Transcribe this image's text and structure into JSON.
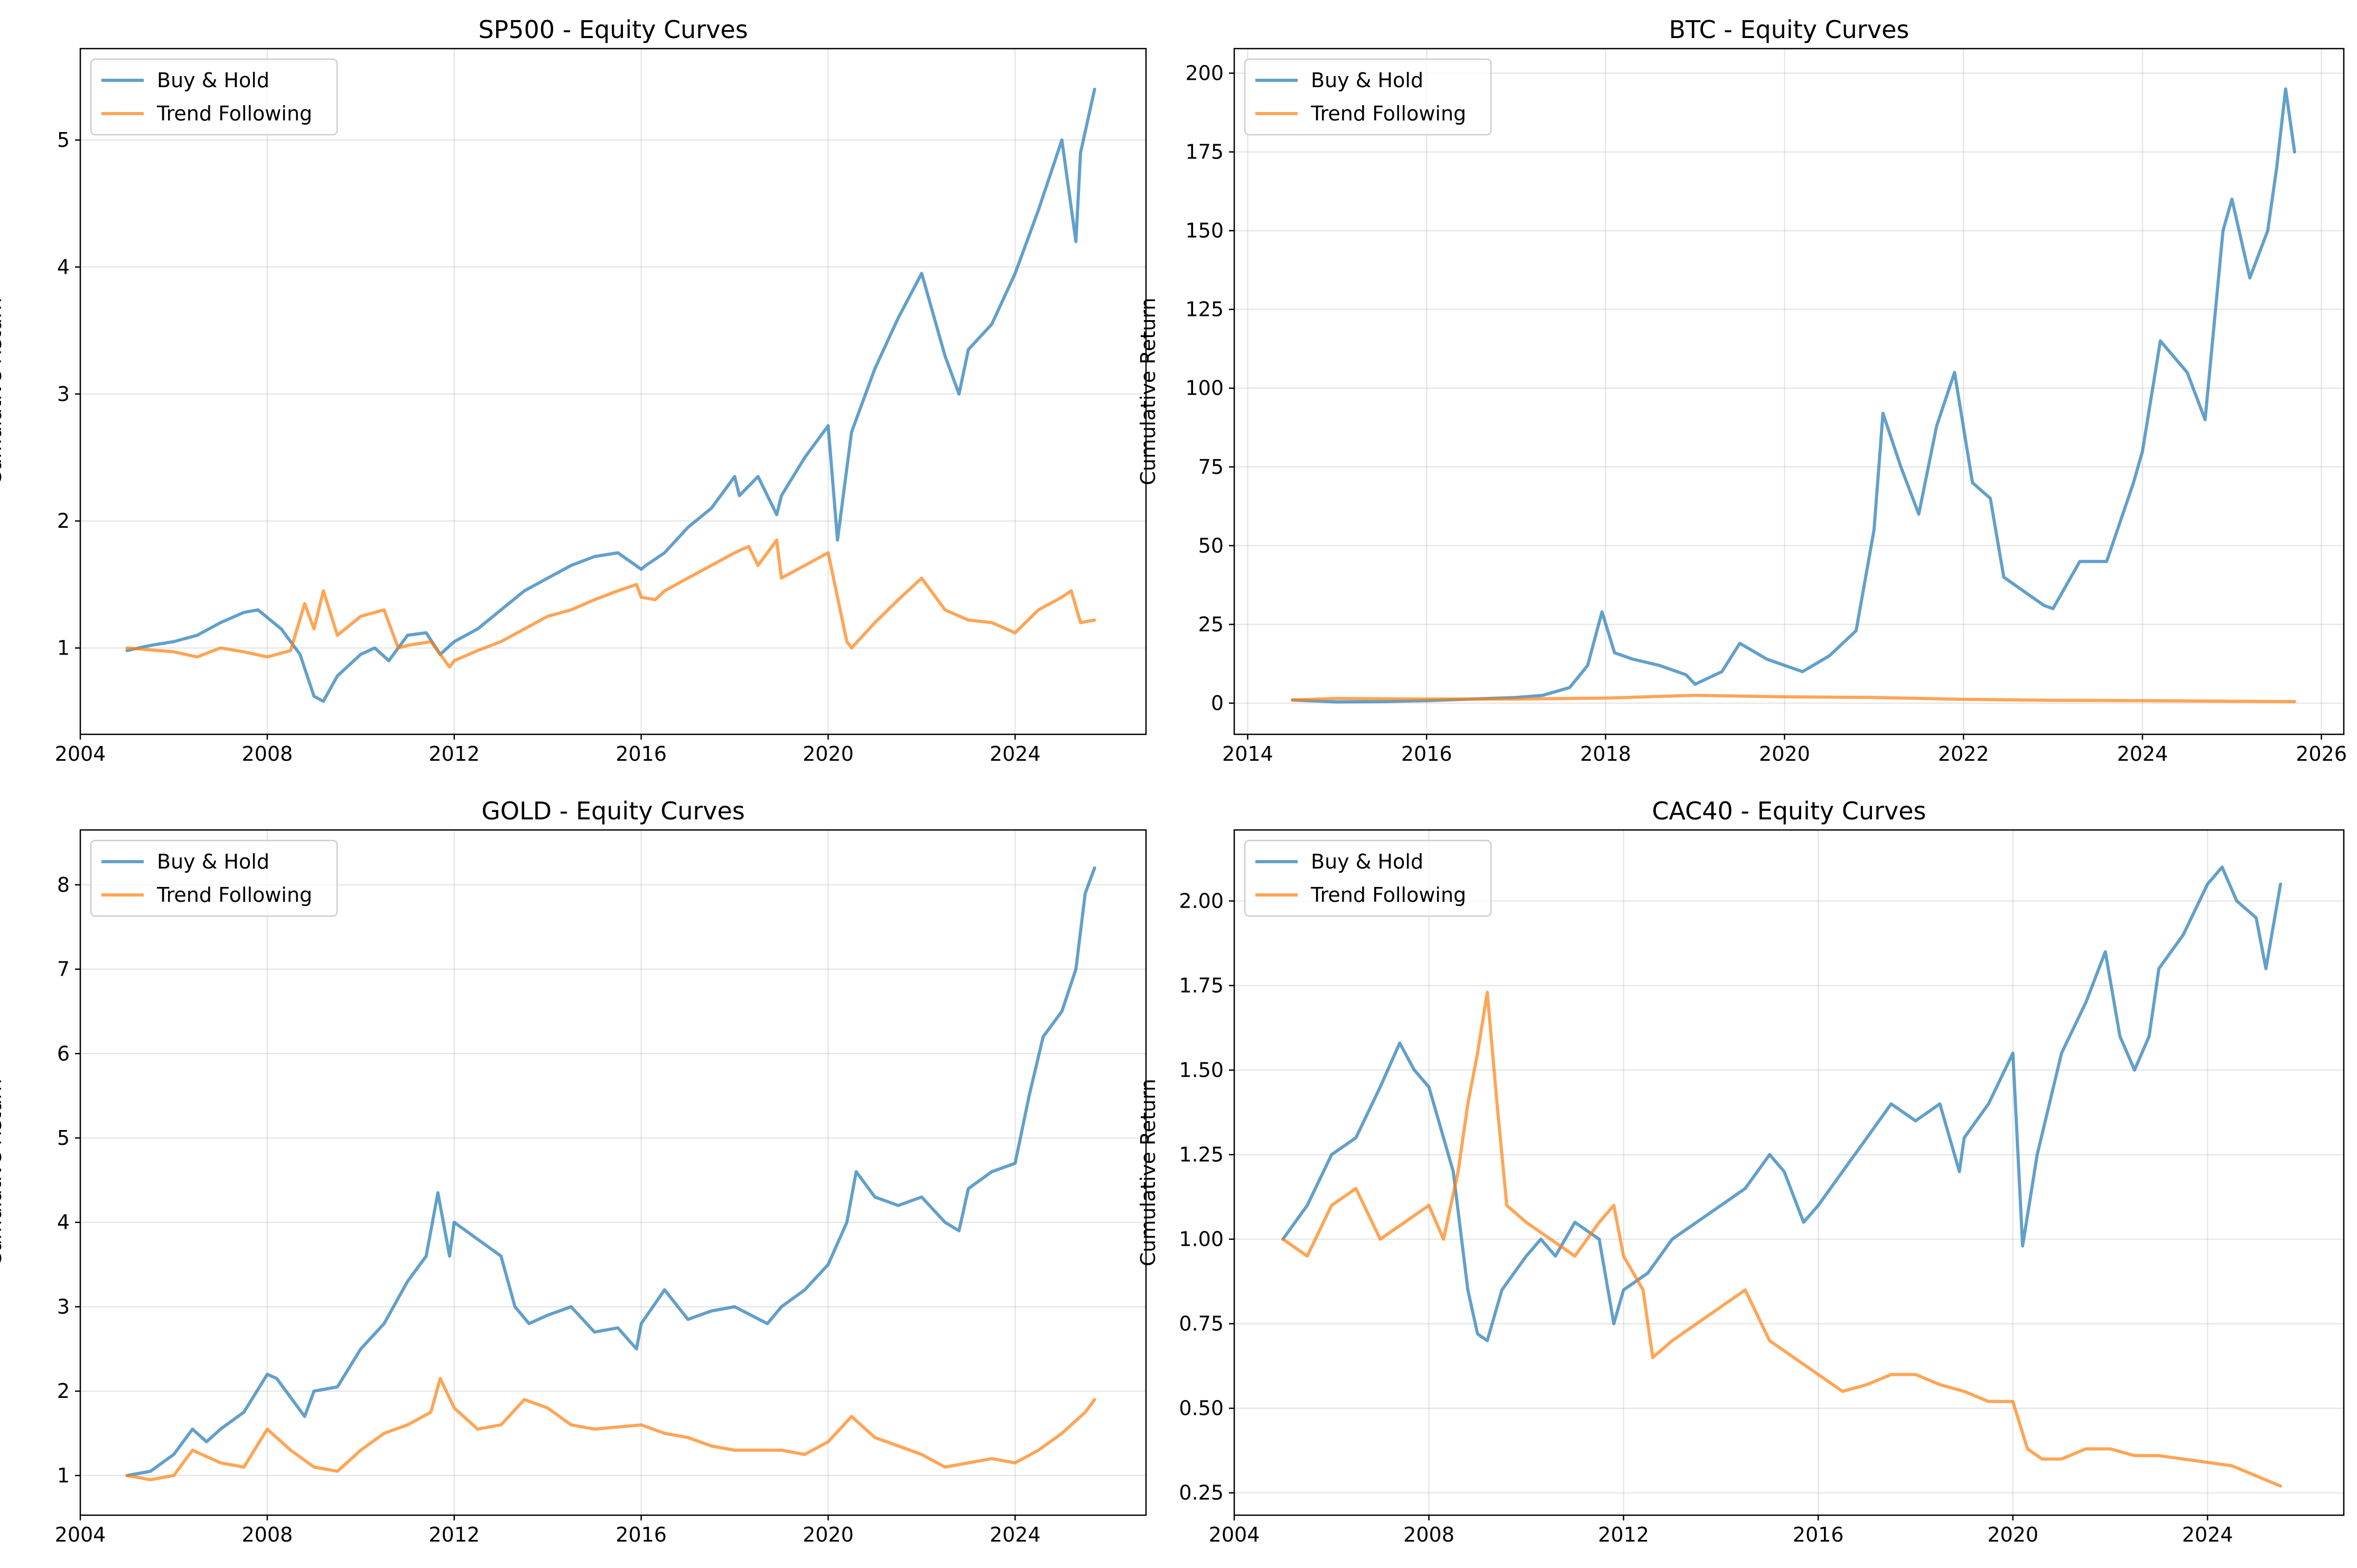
{
  "chart_data": [
    {
      "type": "line",
      "title": "SP500 - Equity Curves",
      "xlabel": "",
      "ylabel": "Cumulative Return",
      "xlim": [
        2004.0,
        2026.8
      ],
      "ylim": [
        0.32,
        5.72
      ],
      "xticks": [
        2004,
        2008,
        2012,
        2016,
        2020,
        2024
      ],
      "yticks": [
        1,
        2,
        3,
        4,
        5
      ],
      "grid": true,
      "legend_position": "upper-left",
      "series": [
        {
          "name": "Buy & Hold",
          "color": "#1f77b4",
          "x": [
            2005.0,
            2005.5,
            2006.0,
            2006.5,
            2007.0,
            2007.5,
            2007.8,
            2008.3,
            2008.7,
            2009.0,
            2009.2,
            2009.5,
            2010.0,
            2010.3,
            2010.6,
            2011.0,
            2011.4,
            2011.7,
            2012.0,
            2012.5,
            2013.0,
            2013.5,
            2014.0,
            2014.5,
            2015.0,
            2015.5,
            2016.0,
            2016.1,
            2016.5,
            2017.0,
            2017.5,
            2018.0,
            2018.1,
            2018.5,
            2018.9,
            2019.0,
            2019.5,
            2020.0,
            2020.2,
            2020.5,
            2021.0,
            2021.5,
            2022.0,
            2022.5,
            2022.8,
            2023.0,
            2023.5,
            2024.0,
            2024.5,
            2025.0,
            2025.3,
            2025.4,
            2025.7
          ],
          "y": [
            0.98,
            1.02,
            1.05,
            1.1,
            1.2,
            1.28,
            1.3,
            1.15,
            0.95,
            0.62,
            0.58,
            0.78,
            0.95,
            1.0,
            0.9,
            1.1,
            1.12,
            0.95,
            1.05,
            1.15,
            1.3,
            1.45,
            1.55,
            1.65,
            1.72,
            1.75,
            1.62,
            1.65,
            1.75,
            1.95,
            2.1,
            2.35,
            2.2,
            2.35,
            2.05,
            2.2,
            2.5,
            2.75,
            1.85,
            2.7,
            3.2,
            3.6,
            3.95,
            3.3,
            3.0,
            3.35,
            3.55,
            3.95,
            4.45,
            5.0,
            4.2,
            4.9,
            5.4
          ]
        },
        {
          "name": "Trend Following",
          "color": "#ff7f0e",
          "x": [
            2005.0,
            2006.0,
            2006.5,
            2007.0,
            2007.5,
            2008.0,
            2008.5,
            2008.8,
            2009.0,
            2009.2,
            2009.5,
            2010.0,
            2010.5,
            2010.8,
            2011.0,
            2011.5,
            2011.9,
            2012.0,
            2012.5,
            2013.0,
            2013.5,
            2014.0,
            2014.5,
            2015.0,
            2015.5,
            2015.9,
            2016.0,
            2016.3,
            2016.5,
            2017.0,
            2017.5,
            2018.0,
            2018.3,
            2018.5,
            2018.9,
            2019.0,
            2019.5,
            2020.0,
            2020.2,
            2020.4,
            2020.5,
            2021.0,
            2021.5,
            2022.0,
            2022.2,
            2022.5,
            2023.0,
            2023.5,
            2024.0,
            2024.5,
            2025.0,
            2025.2,
            2025.4,
            2025.7
          ],
          "y": [
            1.0,
            0.97,
            0.93,
            1.0,
            0.97,
            0.93,
            0.98,
            1.35,
            1.15,
            1.45,
            1.1,
            1.25,
            1.3,
            1.0,
            1.02,
            1.05,
            0.85,
            0.9,
            0.98,
            1.05,
            1.15,
            1.25,
            1.3,
            1.38,
            1.45,
            1.5,
            1.4,
            1.38,
            1.45,
            1.55,
            1.65,
            1.75,
            1.8,
            1.65,
            1.85,
            1.55,
            1.65,
            1.75,
            1.4,
            1.05,
            1.0,
            1.2,
            1.38,
            1.55,
            1.45,
            1.3,
            1.22,
            1.2,
            1.12,
            1.3,
            1.4,
            1.45,
            1.2,
            1.22
          ]
        }
      ]
    },
    {
      "type": "line",
      "title": "BTC - Equity Curves",
      "xlabel": "",
      "ylabel": "Cumulative Return",
      "xlim": [
        2013.85,
        2026.25
      ],
      "ylim": [
        -9.9,
        207.8
      ],
      "xticks": [
        2014,
        2016,
        2018,
        2020,
        2022,
        2024,
        2026
      ],
      "yticks": [
        0,
        25,
        50,
        75,
        100,
        125,
        150,
        175,
        200
      ],
      "grid": true,
      "legend_position": "upper-left",
      "series": [
        {
          "name": "Buy & Hold",
          "color": "#1f77b4",
          "x": [
            2014.5,
            2015.0,
            2015.5,
            2016.0,
            2016.5,
            2017.0,
            2017.3,
            2017.6,
            2017.8,
            2017.96,
            2018.1,
            2018.3,
            2018.6,
            2018.9,
            2019.0,
            2019.3,
            2019.5,
            2019.8,
            2020.0,
            2020.2,
            2020.5,
            2020.8,
            2021.0,
            2021.1,
            2021.3,
            2021.5,
            2021.7,
            2021.9,
            2022.1,
            2022.3,
            2022.45,
            2022.6,
            2022.9,
            2023.0,
            2023.3,
            2023.6,
            2023.9,
            2024.0,
            2024.2,
            2024.5,
            2024.7,
            2024.9,
            2025.0,
            2025.2,
            2025.4,
            2025.5,
            2025.6,
            2025.7
          ],
          "y": [
            1.0,
            0.4,
            0.5,
            0.8,
            1.3,
            1.8,
            2.5,
            5.0,
            12.0,
            29.0,
            16.0,
            14.0,
            12.0,
            9.0,
            6.0,
            10.0,
            19.0,
            14.0,
            12.0,
            10.0,
            15.0,
            23.0,
            55.0,
            92.0,
            75.0,
            60.0,
            88.0,
            105.0,
            70.0,
            65.0,
            40.0,
            37.0,
            31.0,
            30.0,
            45.0,
            45.0,
            70.0,
            80.0,
            115.0,
            105.0,
            90.0,
            150.0,
            160.0,
            135.0,
            150.0,
            170.0,
            195.0,
            175.0
          ]
        },
        {
          "name": "Trend Following",
          "color": "#ff7f0e",
          "x": [
            2014.5,
            2015.0,
            2016.0,
            2017.0,
            2018.0,
            2019.0,
            2020.0,
            2021.0,
            2022.0,
            2023.0,
            2024.0,
            2025.0,
            2025.7
          ],
          "y": [
            1.0,
            1.5,
            1.3,
            1.3,
            1.6,
            2.5,
            2.0,
            1.8,
            1.2,
            0.9,
            0.8,
            0.6,
            0.5
          ]
        }
      ]
    },
    {
      "type": "line",
      "title": "GOLD - Equity Curves",
      "xlabel": "",
      "ylabel": "Cumulative Return",
      "xlim": [
        2004.0,
        2026.8
      ],
      "ylim": [
        0.53,
        8.65
      ],
      "xticks": [
        2004,
        2008,
        2012,
        2016,
        2020,
        2024
      ],
      "yticks": [
        1,
        2,
        3,
        4,
        5,
        6,
        7,
        8
      ],
      "grid": true,
      "legend_position": "upper-left",
      "series": [
        {
          "name": "Buy & Hold",
          "color": "#1f77b4",
          "x": [
            2005.0,
            2005.5,
            2006.0,
            2006.4,
            2006.7,
            2007.0,
            2007.5,
            2008.0,
            2008.2,
            2008.8,
            2009.0,
            2009.5,
            2010.0,
            2010.5,
            2011.0,
            2011.4,
            2011.65,
            2011.9,
            2012.0,
            2012.5,
            2013.0,
            2013.3,
            2013.6,
            2014.0,
            2014.5,
            2015.0,
            2015.5,
            2015.9,
            2016.0,
            2016.5,
            2017.0,
            2017.5,
            2018.0,
            2018.7,
            2019.0,
            2019.5,
            2020.0,
            2020.4,
            2020.6,
            2021.0,
            2021.5,
            2022.0,
            2022.5,
            2022.8,
            2023.0,
            2023.5,
            2024.0,
            2024.3,
            2024.6,
            2025.0,
            2025.3,
            2025.5,
            2025.7
          ],
          "y": [
            1.0,
            1.05,
            1.25,
            1.55,
            1.4,
            1.55,
            1.75,
            2.2,
            2.15,
            1.7,
            2.0,
            2.05,
            2.5,
            2.8,
            3.3,
            3.6,
            4.35,
            3.6,
            4.0,
            3.8,
            3.6,
            3.0,
            2.8,
            2.9,
            3.0,
            2.7,
            2.75,
            2.5,
            2.8,
            3.2,
            2.85,
            2.95,
            3.0,
            2.8,
            3.0,
            3.2,
            3.5,
            4.0,
            4.6,
            4.3,
            4.2,
            4.3,
            4.0,
            3.9,
            4.4,
            4.6,
            4.7,
            5.5,
            6.2,
            6.5,
            7.0,
            7.9,
            8.2
          ]
        },
        {
          "name": "Trend Following",
          "color": "#ff7f0e",
          "x": [
            2005.0,
            2005.5,
            2006.0,
            2006.4,
            2007.0,
            2007.5,
            2008.0,
            2008.5,
            2009.0,
            2009.5,
            2010.0,
            2010.5,
            2011.0,
            2011.5,
            2011.7,
            2012.0,
            2012.5,
            2013.0,
            2013.5,
            2014.0,
            2014.5,
            2015.0,
            2016.0,
            2016.5,
            2017.0,
            2017.5,
            2018.0,
            2019.0,
            2019.5,
            2020.0,
            2020.5,
            2021.0,
            2022.0,
            2022.5,
            2023.0,
            2023.5,
            2024.0,
            2024.5,
            2025.0,
            2025.5,
            2025.7
          ],
          "y": [
            1.0,
            0.95,
            1.0,
            1.3,
            1.15,
            1.1,
            1.55,
            1.3,
            1.1,
            1.05,
            1.3,
            1.5,
            1.6,
            1.75,
            2.15,
            1.8,
            1.55,
            1.6,
            1.9,
            1.8,
            1.6,
            1.55,
            1.6,
            1.5,
            1.45,
            1.35,
            1.3,
            1.3,
            1.25,
            1.4,
            1.7,
            1.45,
            1.25,
            1.1,
            1.15,
            1.2,
            1.15,
            1.3,
            1.5,
            1.75,
            1.9
          ]
        }
      ]
    },
    {
      "type": "line",
      "title": "CAC40 - Equity Curves",
      "xlabel": "",
      "ylabel": "Cumulative Return",
      "xlim": [
        2004.0,
        2026.8
      ],
      "ylim": [
        0.184,
        2.21
      ],
      "xticks": [
        2004,
        2008,
        2012,
        2016,
        2020,
        2024
      ],
      "yticks": [
        0.25,
        0.5,
        0.75,
        1.0,
        1.25,
        1.5,
        1.75,
        2.0
      ],
      "ytick_labels": [
        "0.25",
        "0.50",
        "0.75",
        "1.00",
        "1.25",
        "1.50",
        "1.75",
        "2.00"
      ],
      "grid": true,
      "legend_position": "upper-left",
      "series": [
        {
          "name": "Buy & Hold",
          "color": "#1f77b4",
          "x": [
            2005.0,
            2005.5,
            2006.0,
            2006.5,
            2007.0,
            2007.4,
            2007.7,
            2008.0,
            2008.5,
            2008.8,
            2009.0,
            2009.2,
            2009.5,
            2010.0,
            2010.3,
            2010.6,
            2011.0,
            2011.5,
            2011.8,
            2012.0,
            2012.5,
            2013.0,
            2013.5,
            2014.0,
            2014.5,
            2015.0,
            2015.3,
            2015.7,
            2016.0,
            2016.5,
            2017.0,
            2017.5,
            2018.0,
            2018.5,
            2018.9,
            2019.0,
            2019.5,
            2020.0,
            2020.2,
            2020.5,
            2021.0,
            2021.5,
            2021.9,
            2022.2,
            2022.5,
            2022.8,
            2023.0,
            2023.5,
            2024.0,
            2024.3,
            2024.6,
            2025.0,
            2025.2,
            2025.5
          ],
          "y": [
            1.0,
            1.1,
            1.25,
            1.3,
            1.45,
            1.58,
            1.5,
            1.45,
            1.2,
            0.85,
            0.72,
            0.7,
            0.85,
            0.95,
            1.0,
            0.95,
            1.05,
            1.0,
            0.75,
            0.85,
            0.9,
            1.0,
            1.05,
            1.1,
            1.15,
            1.25,
            1.2,
            1.05,
            1.1,
            1.2,
            1.3,
            1.4,
            1.35,
            1.4,
            1.2,
            1.3,
            1.4,
            1.55,
            0.98,
            1.25,
            1.55,
            1.7,
            1.85,
            1.6,
            1.5,
            1.6,
            1.8,
            1.9,
            2.05,
            2.1,
            2.0,
            1.95,
            1.8,
            2.05
          ]
        },
        {
          "name": "Trend Following",
          "color": "#ff7f0e",
          "x": [
            2005.0,
            2005.5,
            2006.0,
            2006.5,
            2007.0,
            2007.5,
            2008.0,
            2008.3,
            2008.6,
            2008.8,
            2009.0,
            2009.2,
            2009.4,
            2009.6,
            2010.0,
            2010.5,
            2011.0,
            2011.5,
            2011.8,
            2012.0,
            2012.4,
            2012.6,
            2013.0,
            2013.5,
            2014.0,
            2014.5,
            2015.0,
            2015.5,
            2016.0,
            2016.5,
            2017.0,
            2017.5,
            2018.0,
            2018.5,
            2019.0,
            2019.5,
            2020.0,
            2020.3,
            2020.6,
            2021.0,
            2021.5,
            2022.0,
            2022.5,
            2023.0,
            2023.5,
            2024.0,
            2024.5,
            2025.0,
            2025.5
          ],
          "y": [
            1.0,
            0.95,
            1.1,
            1.15,
            1.0,
            1.05,
            1.1,
            1.0,
            1.2,
            1.4,
            1.55,
            1.73,
            1.4,
            1.1,
            1.05,
            1.0,
            0.95,
            1.05,
            1.1,
            0.95,
            0.85,
            0.65,
            0.7,
            0.75,
            0.8,
            0.85,
            0.7,
            0.65,
            0.6,
            0.55,
            0.57,
            0.6,
            0.6,
            0.57,
            0.55,
            0.52,
            0.52,
            0.38,
            0.35,
            0.35,
            0.38,
            0.38,
            0.36,
            0.36,
            0.35,
            0.34,
            0.33,
            0.3,
            0.27
          ]
        }
      ]
    }
  ]
}
